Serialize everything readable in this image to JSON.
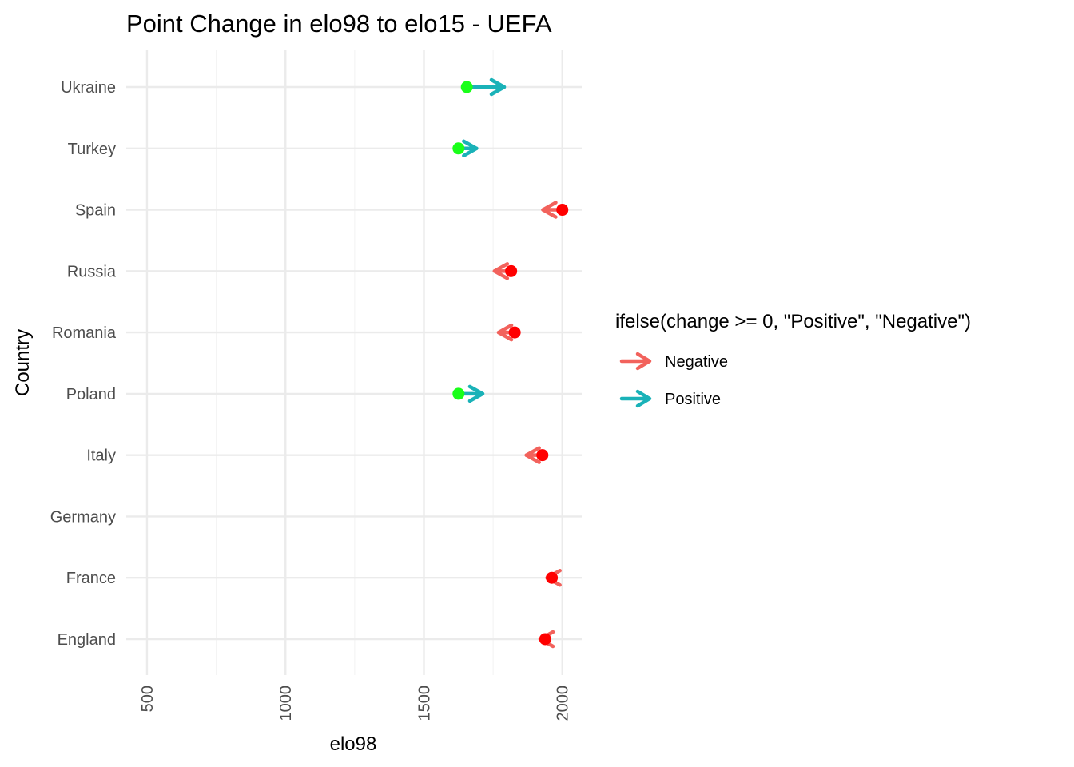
{
  "chart_data": {
    "type": "arrow-dot",
    "title": "Point Change in elo98 to elo15 - UEFA",
    "xlabel": "elo98",
    "ylabel": "Country",
    "xlim": [
      425,
      2070
    ],
    "x_ticks": [
      500,
      1000,
      1500,
      2000
    ],
    "x_tick_labels": [
      "500",
      "1000",
      "1500",
      "2000"
    ],
    "x_minor_ticks": [
      750,
      1250,
      1750
    ],
    "grid": true,
    "categories": [
      "Ukraine",
      "Turkey",
      "Spain",
      "Russia",
      "Romania",
      "Poland",
      "Italy",
      "Germany",
      "France",
      "England"
    ],
    "elo98": [
      1655,
      1625,
      2000,
      1815,
      1828,
      1625,
      1928,
      null,
      1962,
      1938
    ],
    "elo15": [
      1790,
      1690,
      1930,
      1755,
      1770,
      1712,
      1870,
      null,
      1945,
      1920
    ],
    "colors": {
      "positive": "#1ab2b8",
      "negative": "#f2625c",
      "point_positive": "#19ff19",
      "point_negative": "#ff0000",
      "grid_major": "#ebebeb",
      "grid_minor": "#f4f4f4"
    },
    "legend": {
      "title": "ifelse(change >= 0, \"Positive\", \"Negative\")",
      "position": "right",
      "entries": [
        {
          "label": "Negative",
          "key": "negative"
        },
        {
          "label": "Positive",
          "key": "positive"
        }
      ]
    }
  }
}
